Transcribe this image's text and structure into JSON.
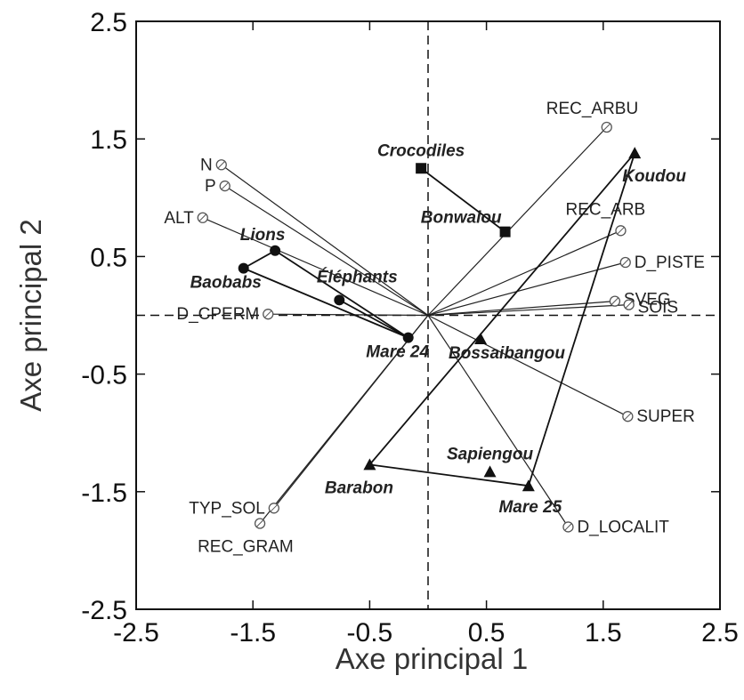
{
  "chart_data": {
    "type": "scatter",
    "title": "",
    "xlabel": "Axe principal 1",
    "ylabel": "Axe principal 2",
    "xlim": [
      -2.5,
      2.5
    ],
    "ylim": [
      -2.5,
      2.5
    ],
    "xticks": [
      -2.5,
      -1.5,
      -0.5,
      0.5,
      1.5,
      2.5
    ],
    "yticks": [
      -2.5,
      -1.5,
      -0.5,
      0.5,
      1.5,
      2.5
    ],
    "x_tick_labels": [
      "-2.5",
      "-1.5",
      "-0.5",
      "0.5",
      "1.5",
      "2.5"
    ],
    "y_tick_labels": [
      "-2.5",
      "-1.5",
      "-0.5",
      "0.5",
      "1.5",
      "2.5"
    ],
    "zero_lines": "dashed",
    "variables": [
      {
        "name": "REC_ARBU",
        "x": 1.53,
        "y": 1.6
      },
      {
        "name": "N",
        "x": -1.77,
        "y": 1.28
      },
      {
        "name": "P",
        "x": -1.74,
        "y": 1.1
      },
      {
        "name": "ALT",
        "x": -1.93,
        "y": 0.83
      },
      {
        "name": "REC_ARB",
        "x": 1.65,
        "y": 0.72
      },
      {
        "name": "D_PISTE",
        "x": 1.69,
        "y": 0.45
      },
      {
        "name": "SVEG",
        "x": 1.6,
        "y": 0.12
      },
      {
        "name": "SOIS",
        "x": 1.72,
        "y": 0.09
      },
      {
        "name": "D_CPERM",
        "x": -1.37,
        "y": 0.01
      },
      {
        "name": "SUPER",
        "x": 1.71,
        "y": -0.86
      },
      {
        "name": "TYP_SOL",
        "x": -1.32,
        "y": -1.64
      },
      {
        "name": "REC_GRAM",
        "x": -1.44,
        "y": -1.77
      },
      {
        "name": "D_LOCALIT",
        "x": 1.2,
        "y": -1.8
      }
    ],
    "groups": [
      {
        "marker": "square",
        "sites": [
          {
            "name": "Crocodiles",
            "x": -0.06,
            "y": 1.25
          },
          {
            "name": "Bonwalou",
            "x": 0.66,
            "y": 0.71
          }
        ]
      },
      {
        "marker": "circle",
        "sites": [
          {
            "name": "Lions",
            "x": -1.31,
            "y": 0.55
          },
          {
            "name": "Baobabs",
            "x": -1.58,
            "y": 0.4
          },
          {
            "name": "Éléphants",
            "x": -0.76,
            "y": 0.13
          },
          {
            "name": "Mare 24",
            "x": -0.17,
            "y": -0.19
          }
        ]
      },
      {
        "marker": "triangle",
        "sites": [
          {
            "name": "Koudou",
            "x": 1.77,
            "y": 1.38
          },
          {
            "name": "Bossaibangou",
            "x": 0.45,
            "y": -0.2
          },
          {
            "name": "Barabon",
            "x": -0.5,
            "y": -1.27
          },
          {
            "name": "Sapiengou",
            "x": 0.53,
            "y": -1.33
          },
          {
            "name": "Mare 25",
            "x": 0.86,
            "y": -1.45
          }
        ]
      }
    ]
  }
}
